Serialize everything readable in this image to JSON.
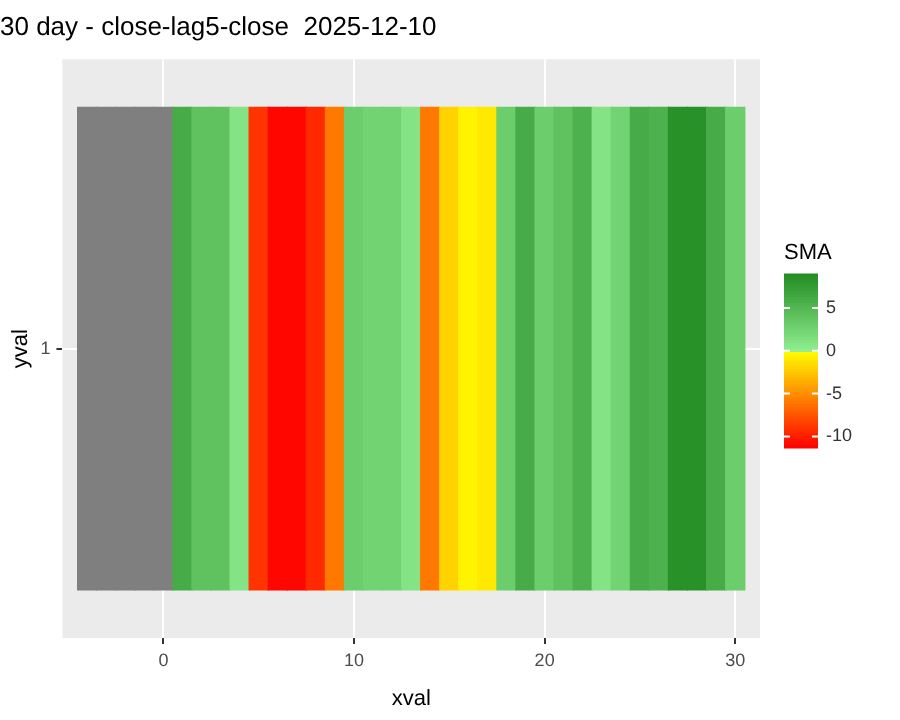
{
  "chart_data": {
    "type": "heatmap",
    "title": "30 day - close-lag5-close  2025-12-10",
    "xlabel": "xval",
    "ylabel": "yval",
    "legend_title": "SMA",
    "x": [
      -4,
      -3,
      -2,
      -1,
      0,
      1,
      2,
      3,
      4,
      5,
      6,
      7,
      8,
      9,
      10,
      11,
      12,
      13,
      14,
      15,
      16,
      17,
      18,
      19,
      20,
      21,
      22,
      23,
      24,
      25,
      26,
      27,
      28,
      29,
      30
    ],
    "y_categories": [
      "1"
    ],
    "cells": [
      [
        null,
        null,
        null,
        null,
        null,
        6,
        4,
        4,
        1,
        -9,
        -11,
        -11,
        -9.5,
        -6,
        3,
        2.5,
        2.5,
        1,
        -6,
        -2,
        -0.5,
        -1,
        3,
        6,
        3,
        4,
        5.5,
        1,
        2.5,
        6,
        5.5,
        8.5,
        8.5,
        6,
        3
      ]
    ],
    "xlim": [
      -5.3,
      31.3
    ],
    "xticks": [
      0,
      10,
      20,
      30
    ],
    "clim": [
      -11.3,
      9
    ],
    "cticks": [
      -10,
      -5,
      0,
      5
    ],
    "grid": true
  }
}
